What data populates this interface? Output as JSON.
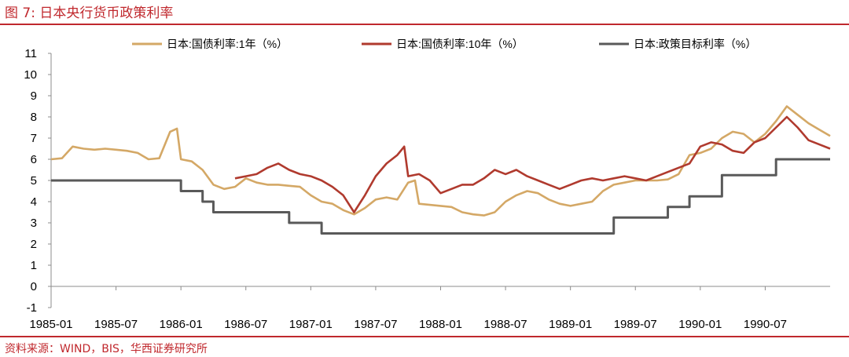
{
  "figure": {
    "title": "图 7:  日本央行货币政策利率",
    "source": "资料来源：WIND，BIS，华西证券研究所"
  },
  "colors": {
    "accent": "#c0282d",
    "series_1y": "#d4a866",
    "series_10y": "#b03a2e",
    "series_policy": "#595959",
    "axis": "#8c8c8c"
  },
  "chart_data": {
    "type": "line",
    "title": "",
    "xlabel": "",
    "ylabel": "",
    "ylim": [
      -1,
      11
    ],
    "yticks": [
      "-1",
      "0",
      "1",
      "2",
      "3",
      "4",
      "5",
      "6",
      "7",
      "8",
      "9",
      "10",
      "11"
    ],
    "xticks": [
      "1985-01",
      "1985-07",
      "1986-01",
      "1986-07",
      "1987-01",
      "1987-07",
      "1988-01",
      "1988-07",
      "1989-01",
      "1989-07",
      "1990-01",
      "1990-07"
    ],
    "xrange": [
      "1985-01",
      "1991-01"
    ],
    "grid": false,
    "legend_position": "top",
    "series": [
      {
        "name": "日本:国债利率:1年（%）",
        "color": "#d4a866",
        "points": [
          [
            "1985-01",
            6.0
          ],
          [
            "1985-02",
            6.05
          ],
          [
            "1985-03",
            6.6
          ],
          [
            "1985-04",
            6.5
          ],
          [
            "1985-05",
            6.45
          ],
          [
            "1985-06",
            6.5
          ],
          [
            "1985-07",
            6.45
          ],
          [
            "1985-08",
            6.4
          ],
          [
            "1985-09",
            6.3
          ],
          [
            "1985-10",
            6.0
          ],
          [
            "1985-11",
            6.05
          ],
          [
            "1985-12",
            7.3
          ],
          [
            "1985-12-20",
            7.45
          ],
          [
            "1986-01",
            6.0
          ],
          [
            "1986-02",
            5.9
          ],
          [
            "1986-03",
            5.5
          ],
          [
            "1986-04",
            4.8
          ],
          [
            "1986-05",
            4.6
          ],
          [
            "1986-06",
            4.7
          ],
          [
            "1986-07",
            5.1
          ],
          [
            "1986-08",
            4.9
          ],
          [
            "1986-09",
            4.8
          ],
          [
            "1986-10",
            4.8
          ],
          [
            "1986-11",
            4.75
          ],
          [
            "1986-12",
            4.7
          ],
          [
            "1987-01",
            4.3
          ],
          [
            "1987-02",
            4.0
          ],
          [
            "1987-03",
            3.9
          ],
          [
            "1987-04",
            3.6
          ],
          [
            "1987-05",
            3.4
          ],
          [
            "1987-06",
            3.7
          ],
          [
            "1987-07",
            4.1
          ],
          [
            "1987-08",
            4.2
          ],
          [
            "1987-09",
            4.1
          ],
          [
            "1987-10",
            4.9
          ],
          [
            "1987-10-20",
            5.0
          ],
          [
            "1987-11",
            3.9
          ],
          [
            "1987-12",
            3.85
          ],
          [
            "1988-01",
            3.8
          ],
          [
            "1988-02",
            3.75
          ],
          [
            "1988-03",
            3.5
          ],
          [
            "1988-04",
            3.4
          ],
          [
            "1988-05",
            3.35
          ],
          [
            "1988-06",
            3.5
          ],
          [
            "1988-07",
            4.0
          ],
          [
            "1988-08",
            4.3
          ],
          [
            "1988-09",
            4.5
          ],
          [
            "1988-10",
            4.4
          ],
          [
            "1988-11",
            4.1
          ],
          [
            "1988-12",
            3.9
          ],
          [
            "1989-01",
            3.8
          ],
          [
            "1989-02",
            3.9
          ],
          [
            "1989-03",
            4.0
          ],
          [
            "1989-04",
            4.5
          ],
          [
            "1989-05",
            4.8
          ],
          [
            "1989-06",
            4.9
          ],
          [
            "1989-07",
            5.0
          ],
          [
            "1989-08",
            5.0
          ],
          [
            "1989-09",
            5.0
          ],
          [
            "1989-10",
            5.05
          ],
          [
            "1989-11",
            5.3
          ],
          [
            "1989-12",
            6.2
          ],
          [
            "1990-01",
            6.3
          ],
          [
            "1990-02",
            6.5
          ],
          [
            "1990-03",
            7.0
          ],
          [
            "1990-04",
            7.3
          ],
          [
            "1990-05",
            7.2
          ],
          [
            "1990-06",
            6.8
          ],
          [
            "1990-07",
            7.2
          ],
          [
            "1990-08",
            7.8
          ],
          [
            "1990-09",
            8.5
          ],
          [
            "1990-10",
            8.1
          ],
          [
            "1990-11",
            7.7
          ],
          [
            "1990-12",
            7.4
          ],
          [
            "1991-01",
            7.1
          ]
        ]
      },
      {
        "name": "日本:国债利率:10年（%）",
        "color": "#b03a2e",
        "points": [
          [
            "1986-06",
            5.1
          ],
          [
            "1986-07",
            5.2
          ],
          [
            "1986-08",
            5.3
          ],
          [
            "1986-09",
            5.6
          ],
          [
            "1986-10",
            5.8
          ],
          [
            "1986-11",
            5.5
          ],
          [
            "1986-12",
            5.3
          ],
          [
            "1987-01",
            5.2
          ],
          [
            "1987-02",
            5.0
          ],
          [
            "1987-03",
            4.7
          ],
          [
            "1987-04",
            4.3
          ],
          [
            "1987-05",
            3.5
          ],
          [
            "1987-06",
            4.3
          ],
          [
            "1987-07",
            5.2
          ],
          [
            "1987-08",
            5.8
          ],
          [
            "1987-09",
            6.2
          ],
          [
            "1987-09-20",
            6.6
          ],
          [
            "1987-10",
            5.2
          ],
          [
            "1987-11",
            5.3
          ],
          [
            "1987-12",
            5.0
          ],
          [
            "1988-01",
            4.4
          ],
          [
            "1988-02",
            4.6
          ],
          [
            "1988-03",
            4.8
          ],
          [
            "1988-04",
            4.8
          ],
          [
            "1988-05",
            5.1
          ],
          [
            "1988-06",
            5.5
          ],
          [
            "1988-07",
            5.3
          ],
          [
            "1988-08",
            5.5
          ],
          [
            "1988-09",
            5.2
          ],
          [
            "1988-10",
            5.0
          ],
          [
            "1988-11",
            4.8
          ],
          [
            "1988-12",
            4.6
          ],
          [
            "1989-01",
            4.8
          ],
          [
            "1989-02",
            5.0
          ],
          [
            "1989-03",
            5.1
          ],
          [
            "1989-04",
            5.0
          ],
          [
            "1989-05",
            5.1
          ],
          [
            "1989-06",
            5.2
          ],
          [
            "1989-07",
            5.1
          ],
          [
            "1989-08",
            5.0
          ],
          [
            "1989-09",
            5.2
          ],
          [
            "1989-10",
            5.4
          ],
          [
            "1989-11",
            5.6
          ],
          [
            "1989-12",
            5.8
          ],
          [
            "1990-01",
            6.6
          ],
          [
            "1990-02",
            6.8
          ],
          [
            "1990-03",
            6.7
          ],
          [
            "1990-04",
            6.4
          ],
          [
            "1990-05",
            6.3
          ],
          [
            "1990-06",
            6.8
          ],
          [
            "1990-07",
            7.0
          ],
          [
            "1990-08",
            7.5
          ],
          [
            "1990-09",
            8.0
          ],
          [
            "1990-10",
            7.5
          ],
          [
            "1990-11",
            6.9
          ],
          [
            "1990-12",
            6.7
          ],
          [
            "1991-01",
            6.5
          ]
        ]
      },
      {
        "name": "日本:政策目标利率（%）",
        "color": "#595959",
        "step": true,
        "points": [
          [
            "1985-01",
            5.0
          ],
          [
            "1986-01",
            4.5
          ],
          [
            "1986-03",
            4.0
          ],
          [
            "1986-04",
            3.5
          ],
          [
            "1986-11",
            3.0
          ],
          [
            "1987-02",
            2.5
          ],
          [
            "1989-05",
            3.25
          ],
          [
            "1989-10",
            3.75
          ],
          [
            "1989-12",
            4.25
          ],
          [
            "1990-03",
            5.25
          ],
          [
            "1990-08",
            6.0
          ],
          [
            "1991-01",
            6.0
          ]
        ]
      }
    ]
  }
}
